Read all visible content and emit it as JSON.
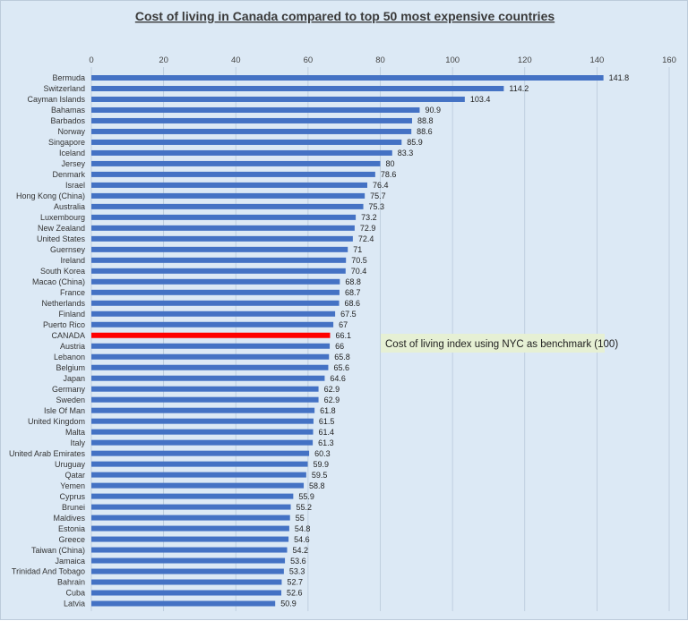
{
  "chart_data": {
    "type": "bar",
    "orientation": "horizontal",
    "title": "Cost of living in Canada compared to top 50 most expensive countries",
    "annotation": "Cost of living index using NYC as benchmark (100)",
    "xlim": [
      0,
      160
    ],
    "x_ticks": [
      0,
      20,
      40,
      60,
      80,
      100,
      120,
      140,
      160
    ],
    "x_tick_labels": [
      "0",
      "20",
      "40",
      "60",
      "80",
      "100",
      "120",
      "140",
      "160"
    ],
    "xaxis_position": "top",
    "grid": true,
    "legend": "none",
    "bar_color": "#4472c4",
    "highlight_color": "#ff0000",
    "highlight_category": "CANADA",
    "categories": [
      "Bermuda",
      "Switzerland",
      "Cayman Islands",
      "Bahamas",
      "Barbados",
      "Norway",
      "Singapore",
      "Iceland",
      "Jersey",
      "Denmark",
      "Israel",
      "Hong Kong (China)",
      "Australia",
      "Luxembourg",
      "New Zealand",
      "United States",
      "Guernsey",
      "Ireland",
      "South Korea",
      "Macao (China)",
      "France",
      "Netherlands",
      "Finland",
      "Puerto Rico",
      "CANADA",
      "Austria",
      "Lebanon",
      "Belgium",
      "Japan",
      "Germany",
      "Sweden",
      "Isle Of Man",
      "United Kingdom",
      "Malta",
      "Italy",
      "United Arab Emirates",
      "Uruguay",
      "Qatar",
      "Yemen",
      "Cyprus",
      "Brunei",
      "Maldives",
      "Estonia",
      "Greece",
      "Taiwan (China)",
      "Jamaica",
      "Trinidad And Tobago",
      "Bahrain",
      "Cuba",
      "Latvia"
    ],
    "values": [
      141.8,
      114.2,
      103.4,
      90.9,
      88.8,
      88.6,
      85.9,
      83.3,
      80,
      78.6,
      76.4,
      75.7,
      75.3,
      73.2,
      72.9,
      72.4,
      71,
      70.5,
      70.4,
      68.8,
      68.7,
      68.6,
      67.5,
      67,
      66.1,
      66,
      65.8,
      65.6,
      64.6,
      62.9,
      62.9,
      61.8,
      61.5,
      61.4,
      61.3,
      60.3,
      59.9,
      59.5,
      58.8,
      55.9,
      55.2,
      55,
      54.8,
      54.6,
      54.2,
      53.6,
      53.3,
      52.7,
      52.6,
      50.9
    ],
    "value_labels": [
      "141.8",
      "114.2",
      "103.4",
      "90.9",
      "88.8",
      "88.6",
      "85.9",
      "83.3",
      "80",
      "78.6",
      "76.4",
      "75.7",
      "75.3",
      "73.2",
      "72.9",
      "72.4",
      "71",
      "70.5",
      "70.4",
      "68.8",
      "68.7",
      "68.6",
      "67.5",
      "67",
      "66.1",
      "66",
      "65.8",
      "65.6",
      "64.6",
      "62.9",
      "62.9",
      "61.8",
      "61.5",
      "61.4",
      "61.3",
      "60.3",
      "59.9",
      "59.5",
      "58.8",
      "55.9",
      "55.2",
      "55",
      "54.8",
      "54.6",
      "54.2",
      "53.6",
      "53.3",
      "52.7",
      "52.6",
      "50.9"
    ]
  }
}
